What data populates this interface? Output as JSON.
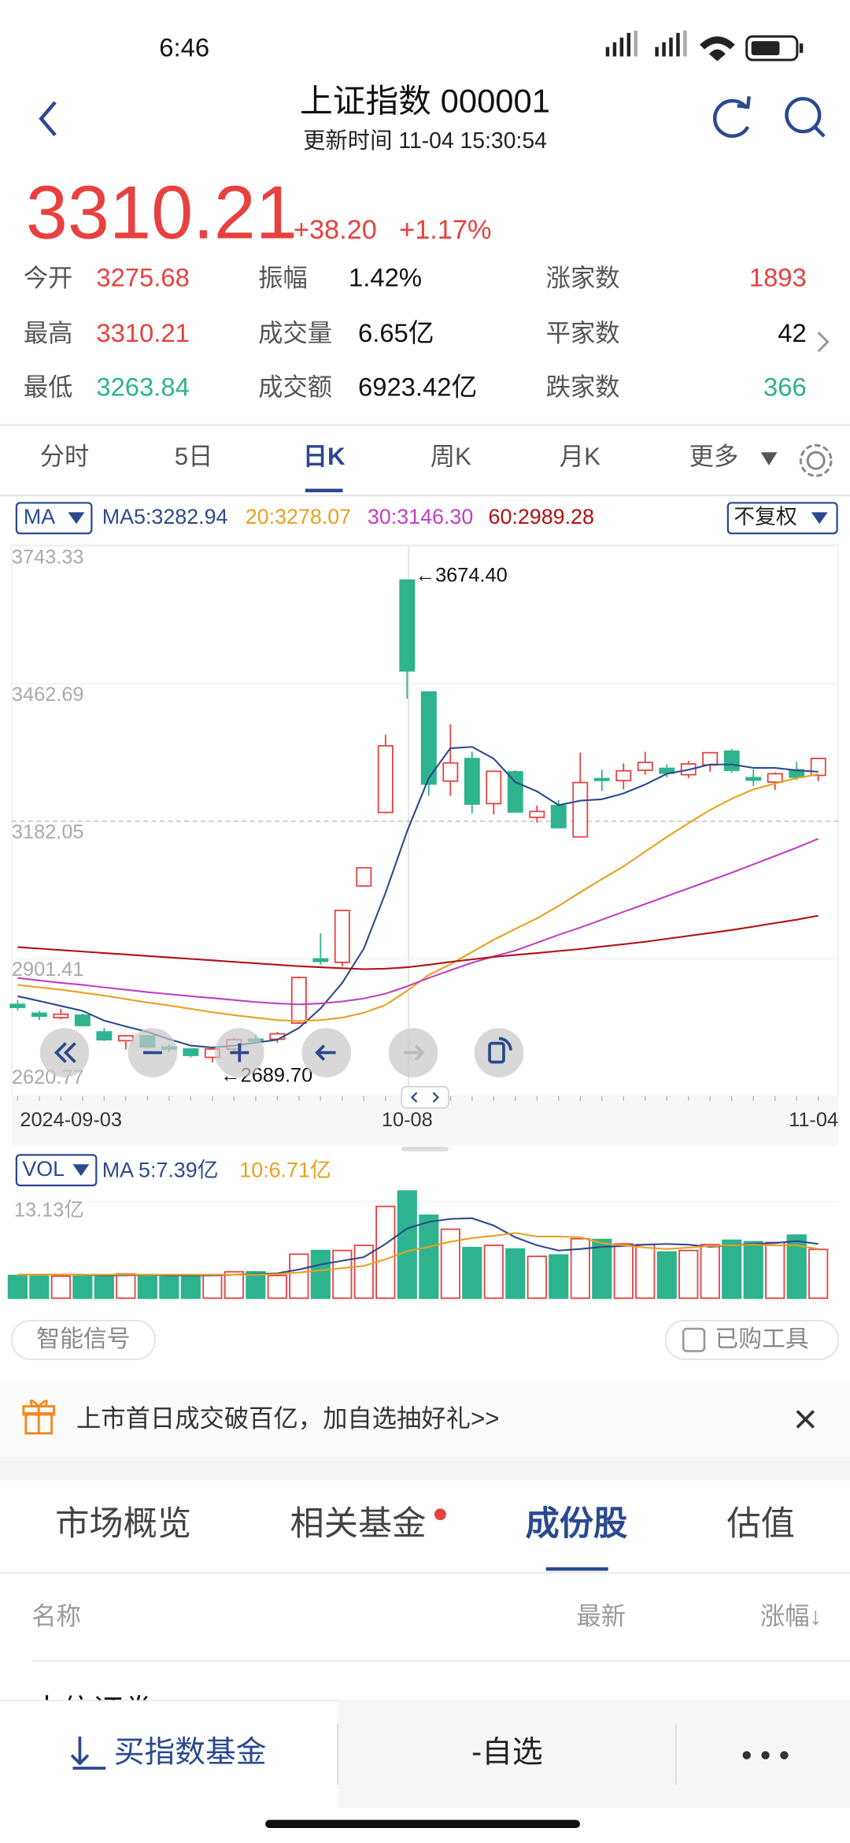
{
  "status_bar": {
    "time": "6:46"
  },
  "header": {
    "title": "上证指数 000001",
    "subtitle": "更新时间 11-04 15:30:54"
  },
  "quote": {
    "price": "3310.21",
    "change": "+38.20",
    "change_pct": "+1.17%"
  },
  "stats": [
    [
      {
        "label": "今开",
        "value": "3275.68"
      },
      {
        "label": "振幅",
        "value": "1.42%"
      },
      {
        "label": "涨家数",
        "value": "1893"
      }
    ],
    [
      {
        "label": "最高",
        "value": "3310.21"
      },
      {
        "label": "成交量",
        "value": "6.65亿"
      },
      {
        "label": "平家数",
        "value": "42"
      }
    ],
    [
      {
        "label": "最低",
        "value": "3263.84"
      },
      {
        "label": "成交额",
        "value": "6923.42亿"
      },
      {
        "label": "跌家数",
        "value": "366"
      }
    ]
  ],
  "tabs": [
    "分时",
    "5日",
    "日K",
    "周K",
    "月K",
    "更多"
  ],
  "ma_legend": {
    "selector": "MA",
    "items": [
      "MA5:3282.94",
      "20:3278.07",
      "30:3146.30",
      "60:2989.28"
    ],
    "adjust": "不复权"
  },
  "vol_legend": {
    "selector": "VOL",
    "items": [
      "MA 5:7.39亿",
      "10:6.71亿"
    ]
  },
  "chart_data": [
    {
      "type": "candlestick",
      "x": [
        "2024-09-03",
        null,
        null,
        null,
        null,
        null,
        null,
        null,
        null,
        null,
        null,
        null,
        null,
        null,
        null,
        null,
        null,
        null,
        "10-08",
        null,
        null,
        null,
        null,
        null,
        null,
        null,
        null,
        null,
        null,
        null,
        null,
        null,
        null,
        null,
        null,
        null,
        null,
        "11-04"
      ],
      "open": [
        2808,
        2790,
        2781,
        2786,
        2752,
        2734,
        2744,
        2721,
        2717,
        2700,
        2717,
        2737,
        2737,
        2770,
        2901,
        2894,
        3050,
        3200,
        3674.4,
        3446,
        3264,
        3310,
        3218,
        3283,
        3190,
        3214,
        3150,
        3269,
        3265,
        3286,
        3290,
        3277,
        3297,
        3325,
        3271,
        3262,
        3287,
        3275.68
      ],
      "high": [
        2817,
        2795,
        2799,
        2789,
        2760,
        2746,
        2745,
        2727,
        2718,
        2720,
        2740,
        2745,
        2752,
        2865,
        2953,
        3000,
        3088,
        3359,
        3674.4,
        3447,
        3380,
        3324,
        3285,
        3286,
        3214,
        3225,
        3322,
        3287,
        3300,
        3324,
        3298,
        3305,
        3323,
        3330,
        3288,
        3282,
        3303,
        3310.21
      ],
      "low": [
        2796,
        2776,
        2778,
        2763,
        2733,
        2716,
        2718,
        2711,
        2700,
        2689.7,
        2710,
        2730,
        2730,
        2768,
        2889,
        2886,
        3048,
        3198,
        3432,
        3234,
        3234,
        3198,
        3196,
        3200,
        3179,
        3167,
        3152,
        3244,
        3247,
        3277,
        3272,
        3270,
        3283,
        3281,
        3254,
        3246,
        3266,
        3263.84
      ],
      "close": [
        2802,
        2784,
        2788,
        2765,
        2736,
        2744,
        2721,
        2717,
        2704,
        2717,
        2736,
        2736,
        2748,
        2863,
        2896,
        3000,
        3087,
        3336,
        3489,
        3258,
        3301,
        3217,
        3284,
        3201,
        3202,
        3169,
        3261,
        3268,
        3285,
        3302,
        3280,
        3299,
        3322,
        3286,
        3266,
        3279,
        3272,
        3310.21
      ],
      "up_color": "#e8403f",
      "down_color": "#2db38e",
      "ylim": [
        2620.77,
        3743.33
      ],
      "yticks": [
        3743.33,
        3462.69,
        3182.05,
        2901.41,
        2620.77
      ],
      "grid": true,
      "series": [
        {
          "color": "#2d4a8a",
          "values": [
            2825,
            2815,
            2805,
            2795,
            2775,
            2763,
            2752,
            2737,
            2724,
            2720,
            2724,
            2730,
            2736,
            2760,
            2800,
            2852,
            2922,
            3036,
            3162,
            3270,
            3331,
            3334,
            3310,
            3262,
            3243,
            3215,
            3224,
            3227,
            3239,
            3257,
            3279,
            3287,
            3298,
            3298,
            3291,
            3291,
            3286,
            3282.94
          ]
        },
        {
          "color": "#e8a020",
          "values": [
            2848,
            2843,
            2838,
            2832,
            2826,
            2819,
            2812,
            2806,
            2799,
            2792,
            2786,
            2781,
            2776,
            2774,
            2776,
            2781,
            2791,
            2807,
            2836,
            2868,
            2890,
            2915,
            2940,
            2962,
            2984,
            3009,
            3037,
            3064,
            3090,
            3120,
            3150,
            3178,
            3205,
            3228,
            3247,
            3259,
            3270,
            3278.07
          ]
        },
        {
          "color": "#c040c0",
          "values": [
            2862,
            2857,
            2852,
            2848,
            2843,
            2838,
            2833,
            2829,
            2825,
            2821,
            2817,
            2813,
            2810,
            2808,
            2810,
            2814,
            2820,
            2830,
            2845,
            2862,
            2878,
            2893,
            2906,
            2918,
            2934,
            2950,
            2965,
            2981,
            2997,
            3013,
            3029,
            3045,
            3061,
            3077,
            3094,
            3111,
            3128,
            3146.3
          ]
        },
        {
          "color": "#b01010",
          "values": [
            2925,
            2922,
            2919,
            2916,
            2913,
            2910,
            2907,
            2904,
            2901,
            2898,
            2895,
            2892,
            2889,
            2886,
            2884,
            2882,
            2880,
            2881,
            2884,
            2889,
            2895,
            2900,
            2905,
            2909,
            2913,
            2917,
            2921,
            2926,
            2931,
            2936,
            2942,
            2948,
            2954,
            2960,
            2967,
            2974,
            2981,
            2989.28
          ]
        }
      ],
      "annotations": {
        "max": "←3674.40",
        "min": "←2689.70"
      }
    },
    {
      "type": "bar",
      "values": [
        3.1,
        3.0,
        3.0,
        3.2,
        3.1,
        3.3,
        3.0,
        3.0,
        3.0,
        3.1,
        3.6,
        3.6,
        3.1,
        6.0,
        6.5,
        6.5,
        7.2,
        12.5,
        14.6,
        11.3,
        9.4,
        6.9,
        7.2,
        6.7,
        5.7,
        5.9,
        8.1,
        8.0,
        7.4,
        7.3,
        6.3,
        6.5,
        7.3,
        7.9,
        7.7,
        7.6,
        8.6,
        6.65
      ],
      "ylim": [
        0,
        15.2
      ],
      "yticks": [
        {
          "value": 13.13,
          "label": "13.13亿"
        }
      ],
      "series": [
        {
          "color": "#2d4a8a",
          "values": [
            3.2,
            3.2,
            3.2,
            3.2,
            3.1,
            3.1,
            3.2,
            3.1,
            3.1,
            3.1,
            3.2,
            3.3,
            3.4,
            3.9,
            4.6,
            5.1,
            5.6,
            7.4,
            9.5,
            10.4,
            10.8,
            10.9,
            9.9,
            8.3,
            7.2,
            6.5,
            6.7,
            7.0,
            7.1,
            7.3,
            7.4,
            7.3,
            7.0,
            7.2,
            7.4,
            7.5,
            7.8,
            7.39
          ]
        },
        {
          "color": "#e8a020",
          "values": [
            3.2,
            3.2,
            3.2,
            3.2,
            3.2,
            3.2,
            3.2,
            3.2,
            3.2,
            3.2,
            3.2,
            3.2,
            3.3,
            3.5,
            3.8,
            4.1,
            4.4,
            5.3,
            6.4,
            7.0,
            7.7,
            8.2,
            8.5,
            8.9,
            8.4,
            8.4,
            8.3,
            7.5,
            7.2,
            6.9,
            6.7,
            6.9,
            7.1,
            7.2,
            7.3,
            7.2,
            7.2,
            6.71
          ]
        }
      ]
    }
  ],
  "signals": {
    "left": "智能信号",
    "right": "已购工具"
  },
  "banner": "上市首日成交破百亿，加自选抽好礼>>",
  "section_tabs": [
    "市场概览",
    "相关基金",
    "成份股",
    "估值"
  ],
  "table_header": [
    "名称",
    "最新",
    "涨幅↓"
  ],
  "table_first_row": "中信证券",
  "bottom_bar": {
    "buy": "买指数基金",
    "watch": "-自选"
  }
}
